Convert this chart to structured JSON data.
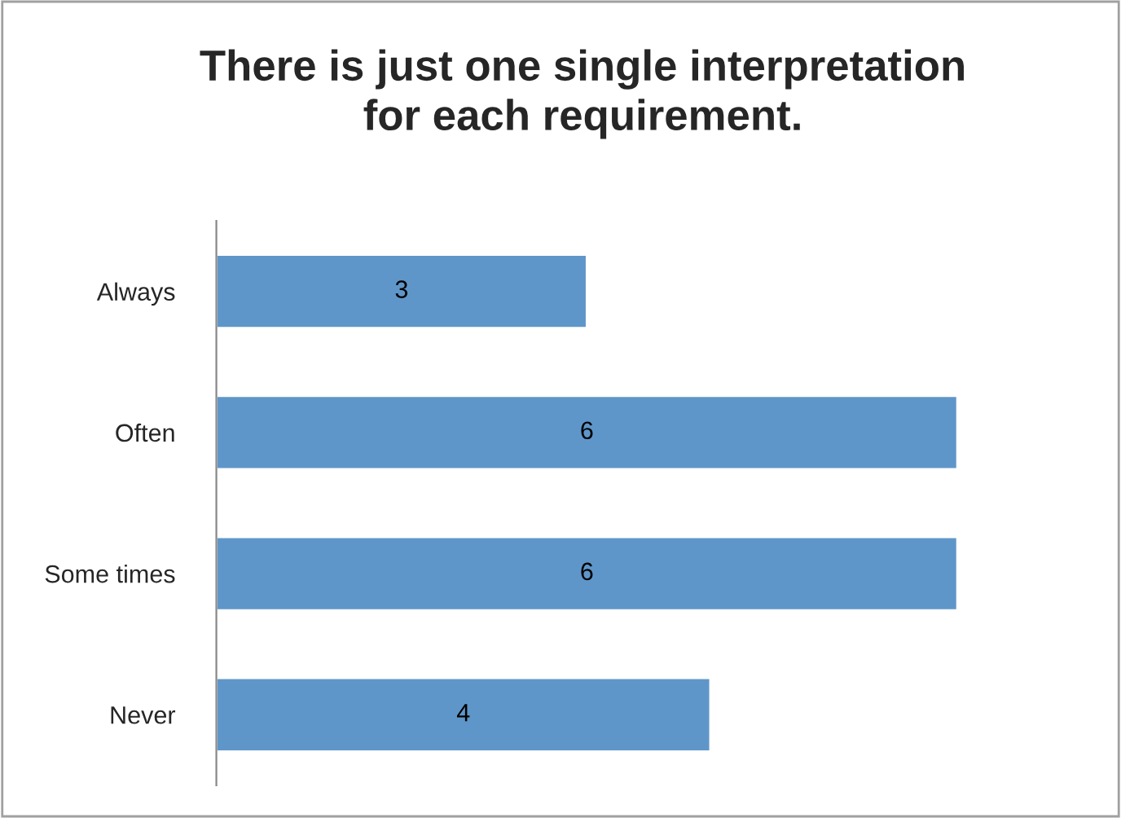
{
  "chart_data": {
    "type": "bar",
    "orientation": "horizontal",
    "title": "There is just one single interpretation\nfor each requirement.",
    "categories": [
      "Always",
      "Often",
      "Some times",
      "Never"
    ],
    "values": [
      3,
      6,
      6,
      4
    ],
    "color": "#5f96c9",
    "data_labels": true,
    "grid": false,
    "legend": false,
    "tick_labels": "y"
  }
}
